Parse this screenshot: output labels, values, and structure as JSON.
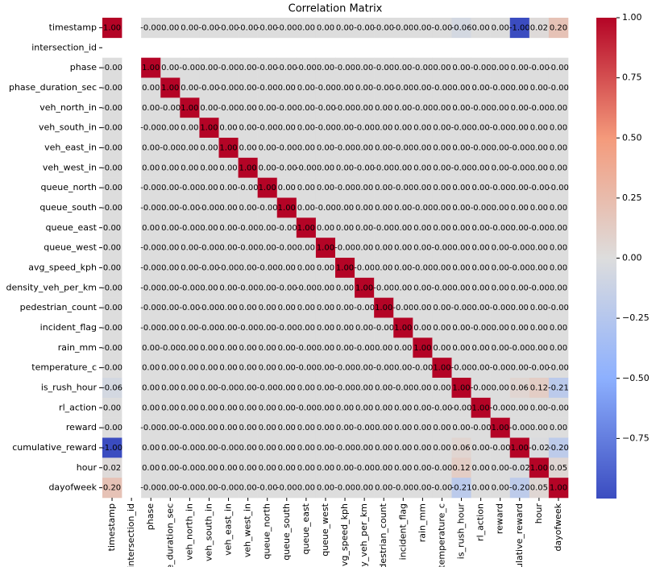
{
  "chart_data": {
    "type": "heatmap",
    "title": "Correlation Matrix",
    "categories": [
      "timestamp",
      "intersection_id",
      "phase",
      "phase_duration_sec",
      "veh_north_in",
      "veh_south_in",
      "veh_east_in",
      "veh_west_in",
      "queue_north",
      "queue_south",
      "queue_east",
      "queue_west",
      "avg_speed_kph",
      "density_veh_per_km",
      "pedestrian_count",
      "incident_flag",
      "rain_mm",
      "temperature_c",
      "is_rush_hour",
      "rl_action",
      "reward",
      "cumulative_reward",
      "hour",
      "dayofweek"
    ],
    "values": [
      [
        1,
        null,
        0,
        0,
        0,
        0,
        0,
        0,
        0,
        0,
        0,
        0,
        0,
        0,
        0,
        0,
        0,
        0,
        -0.06,
        0,
        0,
        -1,
        0.02,
        0.2
      ],
      [
        null,
        null,
        null,
        null,
        null,
        null,
        null,
        null,
        null,
        null,
        null,
        null,
        null,
        null,
        null,
        null,
        null,
        null,
        null,
        null,
        null,
        null,
        null,
        null
      ],
      [
        0,
        null,
        1,
        0,
        0,
        0,
        0,
        0,
        0,
        0,
        0,
        0,
        0,
        0,
        0,
        0,
        0,
        0,
        0,
        0,
        0,
        0,
        0,
        0
      ],
      [
        0,
        null,
        0,
        1,
        0,
        0,
        0,
        0,
        0,
        0,
        0,
        0,
        0,
        0,
        0,
        0,
        0,
        0,
        0,
        0,
        0,
        0,
        0,
        0
      ],
      [
        0,
        null,
        0,
        0,
        1,
        0,
        0,
        0,
        0,
        0,
        0,
        0,
        0,
        0,
        0,
        0,
        0,
        0,
        0,
        0,
        0,
        0,
        0,
        0
      ],
      [
        0,
        null,
        0,
        0,
        0,
        1,
        0,
        0,
        0,
        0,
        0,
        0,
        0,
        0,
        0,
        0,
        0,
        0,
        0,
        0,
        0,
        0,
        0,
        0
      ],
      [
        0,
        null,
        0,
        0,
        0,
        0,
        1,
        0,
        0,
        0,
        0,
        0,
        0,
        0,
        0,
        0,
        0,
        0,
        0,
        0,
        0,
        0,
        0,
        0
      ],
      [
        0,
        null,
        0,
        0,
        0,
        0,
        0,
        1,
        0,
        0,
        0,
        0,
        0,
        0,
        0,
        0,
        0,
        0,
        0,
        0,
        0,
        0,
        0,
        0
      ],
      [
        0,
        null,
        0,
        0,
        0,
        0,
        0,
        0,
        1,
        0,
        0,
        0,
        0,
        0,
        0,
        0,
        0,
        0,
        0,
        0,
        0,
        0,
        0,
        0
      ],
      [
        0,
        null,
        0,
        0,
        0,
        0,
        0,
        0,
        0,
        1,
        0,
        0,
        0,
        0,
        0,
        0,
        0,
        0,
        0,
        0,
        0,
        0,
        0,
        0
      ],
      [
        0,
        null,
        0,
        0,
        0,
        0,
        0,
        0,
        0,
        0,
        1,
        0,
        0,
        0,
        0,
        0,
        0,
        0,
        0,
        0,
        0,
        0,
        0,
        0
      ],
      [
        0,
        null,
        0,
        0,
        0,
        0,
        0,
        0,
        0,
        0,
        0,
        1,
        0,
        0,
        0,
        0,
        0,
        0,
        0,
        0,
        0,
        0,
        0,
        0
      ],
      [
        0,
        null,
        0,
        0,
        0,
        0,
        0,
        0,
        0,
        0,
        0,
        0,
        1,
        0,
        0,
        0,
        0,
        0,
        0,
        0,
        0,
        0,
        0,
        0
      ],
      [
        0,
        null,
        0,
        0,
        0,
        0,
        0,
        0,
        0,
        0,
        0,
        0,
        0,
        1,
        0,
        0,
        0,
        0,
        0,
        0,
        0,
        0,
        0,
        0
      ],
      [
        0,
        null,
        0,
        0,
        0,
        0,
        0,
        0,
        0,
        0,
        0,
        0,
        0,
        0,
        1,
        0,
        0,
        0,
        0,
        0,
        0,
        0,
        0,
        0
      ],
      [
        0,
        null,
        0,
        0,
        0,
        0,
        0,
        0,
        0,
        0,
        0,
        0,
        0,
        0,
        0,
        1,
        0,
        0,
        0,
        0,
        0,
        0,
        0,
        0
      ],
      [
        0,
        null,
        0,
        0,
        0,
        0,
        0,
        0,
        0,
        0,
        0,
        0,
        0,
        0,
        0,
        0,
        1,
        0,
        0,
        0,
        0,
        0,
        0,
        0
      ],
      [
        0,
        null,
        0,
        0,
        0,
        0,
        0,
        0,
        0,
        0,
        0,
        0,
        0,
        0,
        0,
        0,
        0,
        1,
        0,
        0,
        0,
        0,
        0,
        0
      ],
      [
        -0.06,
        null,
        0,
        0,
        0,
        0,
        0,
        0,
        0,
        0,
        0,
        0,
        0,
        0,
        0,
        0,
        0,
        0,
        1,
        0,
        0,
        0.06,
        0.12,
        -0.21
      ],
      [
        0,
        null,
        0,
        0,
        0,
        0,
        0,
        0,
        0,
        0,
        0,
        0,
        0,
        0,
        0,
        0,
        0,
        0,
        0,
        1,
        0,
        0,
        0,
        0
      ],
      [
        0,
        null,
        0,
        0,
        0,
        0,
        0,
        0,
        0,
        0,
        0,
        0,
        0,
        0,
        0,
        0,
        0,
        0,
        0,
        0,
        1,
        0,
        0,
        0
      ],
      [
        -1,
        null,
        0,
        0,
        0,
        0,
        0,
        0,
        0,
        0,
        0,
        0,
        0,
        0,
        0,
        0,
        0,
        0,
        0.06,
        0,
        0,
        1,
        -0.02,
        -0.2
      ],
      [
        0.02,
        null,
        0,
        0,
        0,
        0,
        0,
        0,
        0,
        0,
        0,
        0,
        0,
        0,
        0,
        0,
        0,
        0,
        0.12,
        0,
        0,
        -0.02,
        1,
        0.05
      ],
      [
        0.2,
        null,
        0,
        0,
        0,
        0,
        0,
        0,
        0,
        0,
        0,
        0,
        0,
        0,
        0,
        0,
        0,
        0,
        -0.21,
        0,
        0,
        -0.2,
        0.05,
        1
      ]
    ],
    "value_labels": [
      [
        "1.00",
        null,
        "-0.00",
        "0.00",
        "0.00",
        "-0.00",
        "-0.00",
        "-0.00",
        "-0.00",
        "-0.00",
        "0.00",
        "0.00",
        "0.00",
        "-0.00",
        "-0.00",
        "-0.00",
        "0.00",
        "-0.00",
        "-0.06",
        "0.00",
        "0.00",
        "-1.00",
        "0.02",
        "0.20"
      ],
      [
        null,
        null,
        null,
        null,
        null,
        null,
        null,
        null,
        null,
        null,
        null,
        null,
        null,
        null,
        null,
        null,
        null,
        null,
        null,
        null,
        null,
        null,
        null,
        null
      ],
      [
        "-0.00",
        null,
        "1.00",
        "0.00",
        "-0.00",
        "0.00",
        "-0.00",
        "0.00",
        "-0.00",
        "-0.00",
        "-0.00",
        "0.00",
        "-0.00",
        "0.00",
        "-0.00",
        "0.00",
        "-0.00",
        "0.00",
        "0.00",
        "-0.00",
        "0.00",
        "0.00",
        "-0.00",
        "-0.00"
      ],
      [
        "-0.00",
        null,
        "0.00",
        "1.00",
        "0.00",
        "-0.00",
        "-0.00",
        "0.00",
        "-0.00",
        "0.00",
        "0.00",
        "-0.00",
        "0.00",
        "0.00",
        "-0.00",
        "-0.00",
        "0.00",
        "-0.00",
        "0.00",
        "0.00",
        "-0.00",
        "0.00",
        "0.00",
        "-0.00"
      ],
      [
        "-0.00",
        null,
        "0.00",
        "-0.00",
        "1.00",
        "0.00",
        "-0.00",
        "0.00",
        "0.00",
        "-0.00",
        "0.00",
        "-0.00",
        "-0.00",
        "0.00",
        "0.00",
        "0.00",
        "-0.00",
        "0.00",
        "0.00",
        "-0.00",
        "0.00",
        "0.00",
        "-0.00",
        "0.00"
      ],
      [
        "-0.00",
        null,
        "-0.00",
        "0.00",
        "0.00",
        "1.00",
        "0.00",
        "0.00",
        "-0.00",
        "0.00",
        "0.00",
        "-0.00",
        "0.00",
        "-0.00",
        "0.00",
        "0.00",
        "0.00",
        "0.00",
        "-0.00",
        "0.00",
        "-0.00",
        "0.00",
        "0.00",
        "0.00"
      ],
      [
        "-0.00",
        null,
        "0.00",
        "-0.00",
        "0.00",
        "0.00",
        "1.00",
        "0.00",
        "0.00",
        "-0.00",
        "0.00",
        "0.00",
        "-0.00",
        "0.00",
        "0.00",
        "-0.00",
        "0.00",
        "0.00",
        "0.00",
        "-0.00",
        "0.00",
        "-0.00",
        "0.00",
        "0.00"
      ],
      [
        "-0.00",
        null,
        "0.00",
        "0.00",
        "0.00",
        "0.00",
        "0.00",
        "1.00",
        "0.00",
        "-0.00",
        "-0.00",
        "0.00",
        "0.00",
        "-0.00",
        "-0.00",
        "0.00",
        "0.00",
        "0.00",
        "-0.00",
        "0.00",
        "0.00",
        "-0.00",
        "0.00",
        "0.00"
      ],
      [
        "-0.00",
        null,
        "-0.00",
        "0.00",
        "-0.00",
        "0.00",
        "0.00",
        "-0.00",
        "1.00",
        "0.00",
        "0.00",
        "0.00",
        "-0.00",
        "0.00",
        "0.00",
        "-0.00",
        "0.00",
        "0.00",
        "0.00",
        "0.00",
        "-0.00",
        "0.00",
        "-0.00",
        "-0.00"
      ],
      [
        "-0.00",
        null,
        "-0.00",
        "0.00",
        "-0.00",
        "-0.00",
        "0.00",
        "0.00",
        "-0.00",
        "1.00",
        "0.00",
        "-0.00",
        "0.00",
        "0.00",
        "0.00",
        "0.00",
        "-0.00",
        "0.00",
        "0.00",
        "-0.00",
        "0.00",
        "0.00",
        "0.00",
        "0.00"
      ],
      [
        "0.00",
        null,
        "0.00",
        "0.00",
        "-0.00",
        "0.00",
        "0.00",
        "-0.00",
        "0.00",
        "-0.00",
        "1.00",
        "0.00",
        "0.00",
        "0.00",
        "-0.00",
        "0.00",
        "0.00",
        "0.00",
        "0.00",
        "0.00",
        "-0.00",
        "0.00",
        "-0.00",
        "0.00"
      ],
      [
        "0.00",
        null,
        "-0.00",
        "0.00",
        "0.00",
        "-0.00",
        "0.00",
        "-0.00",
        "0.00",
        "-0.00",
        "0.00",
        "1.00",
        "-0.00",
        "0.00",
        "0.00",
        "0.00",
        "0.00",
        "-0.00",
        "0.00",
        "0.00",
        "0.00",
        "-0.00",
        "0.00",
        "0.00"
      ],
      [
        "0.00",
        null,
        "-0.00",
        "0.00",
        "0.00",
        "-0.00",
        "-0.00",
        "0.00",
        "-0.00",
        "0.00",
        "0.00",
        "0.00",
        "1.00",
        "-0.00",
        "0.00",
        "0.00",
        "-0.00",
        "0.00",
        "0.00",
        "0.00",
        "0.00",
        "-0.00",
        "0.00",
        "0.00"
      ],
      [
        "-0.00",
        null,
        "-0.00",
        "0.00",
        "-0.00",
        "0.00",
        "0.00",
        "-0.00",
        "0.00",
        "-0.00",
        "-0.00",
        "0.00",
        "0.00",
        "1.00",
        "-0.00",
        "0.00",
        "0.00",
        "-0.00",
        "0.00",
        "0.00",
        "0.00",
        "0.00",
        "-0.00",
        "0.00"
      ],
      [
        "-0.00",
        null,
        "-0.00",
        "0.00",
        "-0.00",
        "-0.00",
        "0.00",
        "0.00",
        "0.00",
        "0.00",
        "0.00",
        "0.00",
        "0.00",
        "-0.00",
        "1.00",
        "-0.00",
        "0.00",
        "0.00",
        "-0.00",
        "0.00",
        "-0.00",
        "0.00",
        "0.00",
        "-0.00"
      ],
      [
        "-0.00",
        null,
        "-0.00",
        "0.00",
        "0.00",
        "-0.00",
        "0.00",
        "-0.00",
        "0.00",
        "-0.00",
        "0.00",
        "0.00",
        "0.00",
        "0.00",
        "-0.00",
        "1.00",
        "0.00",
        "0.00",
        "0.00",
        "-0.00",
        "0.00",
        "0.00",
        "0.00",
        "0.00"
      ],
      [
        "-0.00",
        null,
        "0.00",
        "-0.00",
        "0.00",
        "0.00",
        "0.00",
        "0.00",
        "0.00",
        "0.00",
        "-0.00",
        "0.00",
        "0.00",
        "-0.00",
        "0.00",
        "0.00",
        "1.00",
        "0.00",
        "0.00",
        "0.00",
        "0.00",
        "-0.00",
        "0.00",
        "0.00"
      ],
      [
        "-0.00",
        null,
        "0.00",
        "0.00",
        "0.00",
        "0.00",
        "0.00",
        "0.00",
        "0.00",
        "0.00",
        "-0.00",
        "0.00",
        "-0.00",
        "0.00",
        "-0.00",
        "0.00",
        "-0.00",
        "1.00",
        "-0.00",
        "0.00",
        "-0.00",
        "0.00",
        "-0.00",
        "-0.00"
      ],
      [
        "-0.06",
        null,
        "0.00",
        "0.00",
        "0.00",
        "0.00",
        "-0.00",
        "0.00",
        "-0.00",
        "0.00",
        "0.00",
        "0.00",
        "-0.00",
        "0.00",
        "0.00",
        "-0.00",
        "0.00",
        "0.00",
        "1.00",
        "-0.00",
        "0.00",
        "0.06",
        "0.12",
        "-0.21"
      ],
      [
        "0.00",
        null,
        "0.00",
        "0.00",
        "0.00",
        "0.00",
        "0.00",
        "0.00",
        "0.00",
        "0.00",
        "-0.00",
        "0.00",
        "0.00",
        "0.00",
        "0.00",
        "0.00",
        "0.00",
        "-0.00",
        "-0.00",
        "1.00",
        "-0.00",
        "0.00",
        "0.00",
        "-0.00"
      ],
      [
        "-0.00",
        null,
        "-0.00",
        "0.00",
        "-0.00",
        "0.00",
        "0.00",
        "0.00",
        "0.00",
        "0.00",
        "0.00",
        "0.00",
        "0.00",
        "-0.00",
        "0.00",
        "0.00",
        "0.00",
        "0.00",
        "0.00",
        "-0.00",
        "1.00",
        "-0.00",
        "0.00",
        "0.00"
      ],
      [
        "-1.00",
        null,
        "0.00",
        "0.00",
        "-0.00",
        "0.00",
        "-0.00",
        "0.00",
        "0.00",
        "0.00",
        "0.00",
        "0.00",
        "-0.00",
        "0.00",
        "0.00",
        "0.00",
        "0.00",
        "0.00",
        "0.06",
        "0.00",
        "-0.00",
        "1.00",
        "-0.02",
        "-0.20"
      ],
      [
        "0.02",
        null,
        "0.00",
        "0.00",
        "-0.00",
        "0.00",
        "0.00",
        "0.00",
        "0.00",
        "0.00",
        "0.00",
        "0.00",
        "0.00",
        "-0.00",
        "0.00",
        "0.00",
        "0.00",
        "-0.00",
        "0.12",
        "0.00",
        "0.00",
        "-0.02",
        "1.00",
        "0.05"
      ],
      [
        "0.20",
        null,
        "-0.00",
        "0.00",
        "-0.00",
        "0.00",
        "-0.00",
        "0.00",
        "-0.00",
        "-0.00",
        "0.00",
        "0.00",
        "-0.00",
        "0.00",
        "0.00",
        "-0.00",
        "0.00",
        "-0.00",
        "-0.21",
        "0.00",
        "0.00",
        "-0.20",
        "0.05",
        "1.00"
      ]
    ],
    "clim": [
      -1,
      1
    ],
    "colorbar_ticks": [
      {
        "value": 1,
        "label": "1.00"
      },
      {
        "value": 0.75,
        "label": "0.75"
      },
      {
        "value": 0.5,
        "label": "0.50"
      },
      {
        "value": 0.25,
        "label": "0.25"
      },
      {
        "value": 0,
        "label": "0.00"
      },
      {
        "value": -0.25,
        "label": "−0.25"
      },
      {
        "value": -0.5,
        "label": "−0.50"
      },
      {
        "value": -0.75,
        "label": "−0.75"
      }
    ],
    "colormap": [
      "#3b4cc0",
      "#8db0fe",
      "#dddddd",
      "#f49a7b",
      "#b40426"
    ]
  }
}
